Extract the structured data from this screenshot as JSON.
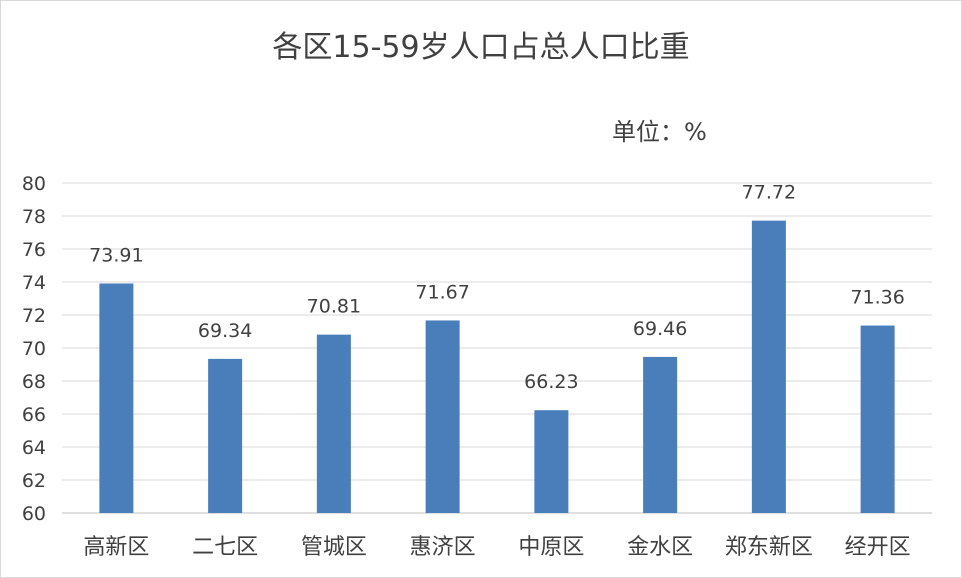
{
  "chart_data": {
    "type": "bar",
    "title": "各区15-59岁人口占总人口比重",
    "unit_label": "单位：%",
    "categories": [
      "高新区",
      "二七区",
      "管城区",
      "惠济区",
      "中原区",
      "金水区",
      "郑东新区",
      "经开区"
    ],
    "values": [
      73.91,
      69.34,
      70.81,
      71.67,
      66.23,
      69.46,
      77.72,
      71.36
    ],
    "data_labels": [
      "73.91",
      "69.34",
      "70.81",
      "71.67",
      "66.23",
      "69.46",
      "77.72",
      "71.36"
    ],
    "xlabel": "",
    "ylabel": "",
    "ylim": [
      60,
      80
    ],
    "yticks": [
      60,
      62,
      64,
      66,
      68,
      70,
      72,
      74,
      76,
      78,
      80
    ],
    "grid": true,
    "legend": "none",
    "bar_color": "#4a7ebb"
  }
}
